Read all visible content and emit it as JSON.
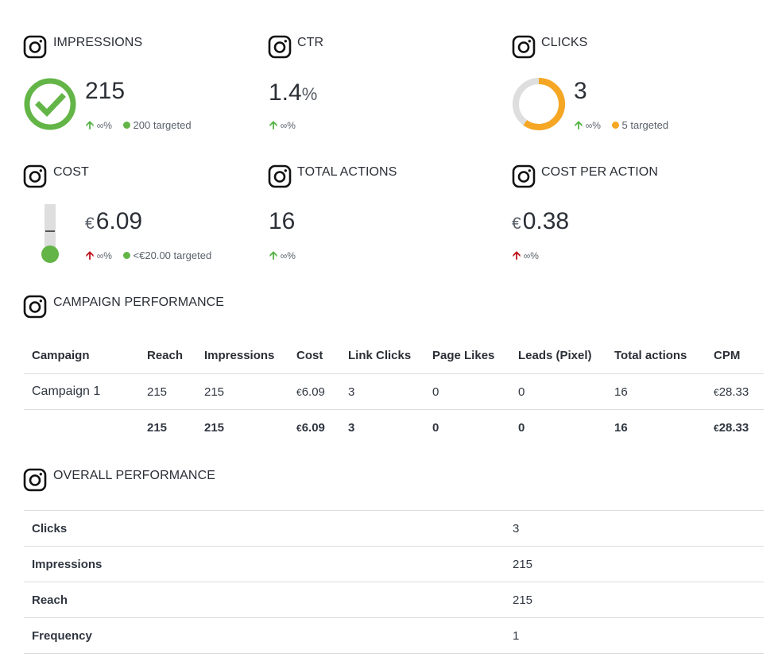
{
  "metrics": {
    "impressions": {
      "title": "IMPRESSIONS",
      "value": "215",
      "change_arrow": "🡩",
      "change": "∞%",
      "target": "200 targeted",
      "target_color": "#63b547",
      "gauge": "check"
    },
    "ctr": {
      "title": "CTR",
      "value": "1.4",
      "unit": "%",
      "change_arrow": "🡩",
      "change": "∞%"
    },
    "clicks": {
      "title": "CLICKS",
      "value": "3",
      "change_arrow": "🡩",
      "change": "∞%",
      "target": "5 targeted",
      "target_color": "#f5a623",
      "progress_fraction": 0.6
    },
    "cost": {
      "title": "COST",
      "currency": "€",
      "value": "6.09",
      "change_arrow": "🡩",
      "change": "∞%",
      "target": "<€20.00 targeted",
      "target_color": "#63b547",
      "level_fraction": 0.3
    },
    "total_actions": {
      "title": "TOTAL ACTIONS",
      "value": "16",
      "change_arrow": "🡩",
      "change": "∞%"
    },
    "cost_per_action": {
      "title": "COST PER ACTION",
      "currency": "€",
      "value": "0.38",
      "change_arrow": "🡩",
      "change": "∞%"
    }
  },
  "campaign_performance": {
    "title": "CAMPAIGN PERFORMANCE",
    "columns": [
      "Campaign",
      "Reach",
      "Impressions",
      "Cost",
      "Link Clicks",
      "Page Likes",
      "Leads (Pixel)",
      "Total actions",
      "CPM"
    ],
    "rows": [
      {
        "campaign": "Campaign 1",
        "reach": "215",
        "impressions": "215",
        "cost_cur": "€",
        "cost": "6.09",
        "link_clicks": "3",
        "page_likes": "0",
        "leads": "0",
        "total_actions": "16",
        "cpm_cur": "€",
        "cpm": "28.33"
      }
    ],
    "total": {
      "reach": "215",
      "impressions": "215",
      "cost_cur": "€",
      "cost": "6.09",
      "link_clicks": "3",
      "page_likes": "0",
      "leads": "0",
      "total_actions": "16",
      "cpm_cur": "€",
      "cpm": "28.33"
    }
  },
  "overall_performance": {
    "title": "OVERALL PERFORMANCE",
    "rows": [
      {
        "label": "Clicks",
        "value": "3"
      },
      {
        "label": "Impressions",
        "value": "215"
      },
      {
        "label": "Reach",
        "value": "215"
      },
      {
        "label": "Frequency",
        "value": "1"
      }
    ]
  },
  "colors": {
    "green": "#63b547",
    "orange": "#f5a623",
    "red": "#c0131d",
    "gray": "#dedede"
  },
  "icons": {
    "section": "instagram-icon",
    "up": "arrow-up-icon"
  }
}
